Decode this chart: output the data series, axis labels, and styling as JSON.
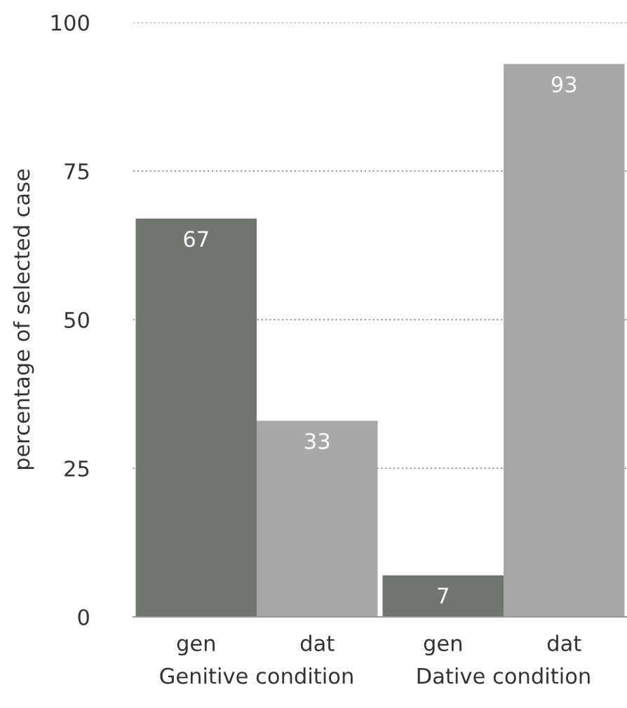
{
  "chart_data": {
    "type": "bar",
    "ylabel": "percentage of selected case",
    "categories": [
      "Genitive condition",
      "Dative condition"
    ],
    "series": [
      {
        "name": "gen",
        "color": "#6f7670",
        "values": [
          67,
          7
        ]
      },
      {
        "name": "dat",
        "color": "#a8a8a8",
        "values": [
          33,
          93
        ]
      }
    ],
    "ylim": [
      0,
      100
    ],
    "yticks": [
      0,
      25,
      50,
      75,
      100
    ],
    "grid": "y",
    "legend": false,
    "data_labels": true
  }
}
